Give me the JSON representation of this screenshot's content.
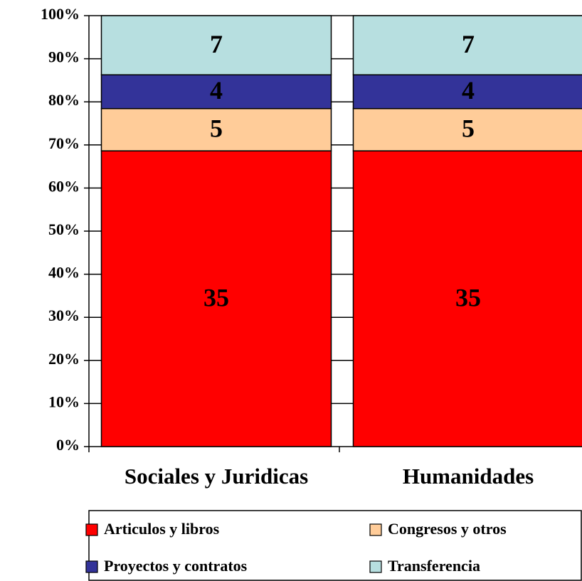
{
  "chart_data": {
    "type": "bar",
    "stacked": "percent",
    "categories": [
      "Sociales y Juridicas",
      "Humanidades"
    ],
    "series": [
      {
        "name": "Articulos y libros",
        "color": "#ff0000",
        "values": [
          35,
          35
        ]
      },
      {
        "name": "Congresos y otros",
        "color": "#ffcc99",
        "values": [
          5,
          5
        ]
      },
      {
        "name": "Proyectos y contratos",
        "color": "#333399",
        "values": [
          4,
          4
        ]
      },
      {
        "name": "Transferencia",
        "color": "#b7dfe0",
        "values": [
          7,
          7
        ]
      }
    ],
    "ylim": [
      0,
      100
    ],
    "yticks": [
      {
        "value": 0,
        "label": "0%"
      },
      {
        "value": 10,
        "label": "10%"
      },
      {
        "value": 20,
        "label": "20%"
      },
      {
        "value": 30,
        "label": "30%"
      },
      {
        "value": 40,
        "label": "40%"
      },
      {
        "value": 50,
        "label": "50%"
      },
      {
        "value": 60,
        "label": "60%"
      },
      {
        "value": 70,
        "label": "70%"
      },
      {
        "value": 80,
        "label": "80%"
      },
      {
        "value": 90,
        "label": "90%"
      },
      {
        "value": 100,
        "label": "100%"
      }
    ],
    "grid": true,
    "legend": "bottom"
  }
}
